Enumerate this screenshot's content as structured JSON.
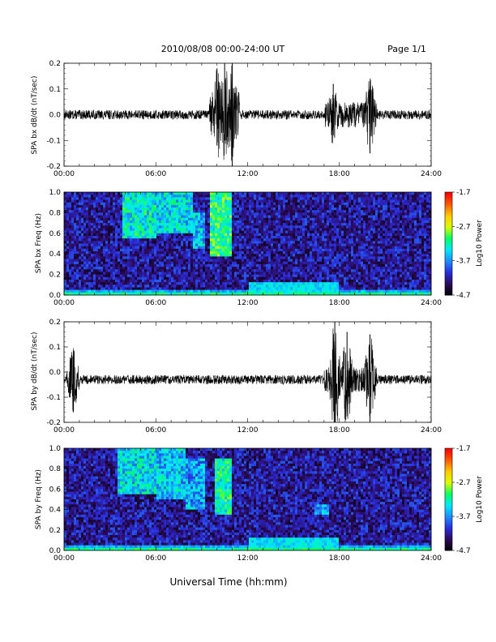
{
  "header": {
    "title": "2010/08/08  00:00-24:00 UT",
    "page": "Page 1/1"
  },
  "xlabel": "Universal Time (hh:mm)",
  "colors": {
    "axis": "#000000",
    "trace": "#000000",
    "colormap": [
      "#000000",
      "#2b0a55",
      "#2a2ad8",
      "#1e88ff",
      "#00e8ff",
      "#00ff66",
      "#d8ff00",
      "#ffcc00",
      "#ff5a00",
      "#ff0000"
    ]
  },
  "chart_data": [
    {
      "type": "line",
      "id": "bx",
      "ylabel": "SPA bx dB/dt (nT/sec)",
      "x_ticks": [
        "00:00",
        "06:00",
        "12:00",
        "18:00",
        "24:00"
      ],
      "xlim": [
        0,
        24
      ],
      "ylim": [
        -0.2,
        0.2
      ],
      "y_ticks": [
        "0.2",
        "0.1",
        "0.0",
        "-0.1",
        "-0.2"
      ],
      "baseline": 0.0,
      "events": [
        {
          "x": 10.0,
          "ymin": -0.12,
          "ymax": 0.18
        },
        {
          "x": 10.5,
          "ymin": -0.1,
          "ymax": 0.2
        },
        {
          "x": 11.0,
          "ymin": -0.2,
          "ymax": 0.2
        },
        {
          "x": 17.6,
          "ymin": -0.08,
          "ymax": 0.12
        },
        {
          "x": 20.0,
          "ymin": -0.15,
          "ymax": 0.11
        }
      ]
    },
    {
      "type": "heatmap",
      "id": "bx-spec",
      "ylabel": "SPA bx Freq (Hz)",
      "x_ticks": [
        "00:00",
        "06:00",
        "12:00",
        "18:00",
        "24:00"
      ],
      "xlim": [
        0,
        24
      ],
      "ylim": [
        0.0,
        1.0
      ],
      "y_ticks": [
        "1.0",
        "0.8",
        "0.6",
        "0.4",
        "0.2",
        "0.0"
      ],
      "colorbar": {
        "label": "Log10 Power",
        "ticks": [
          "-1.7",
          "-2.7",
          "-3.7",
          "-4.7"
        ],
        "range": [
          -4.7,
          -1.7
        ]
      },
      "features": [
        {
          "x_start": 3.8,
          "x_end": 6.0,
          "f_low": 0.55,
          "f_high": 1.0,
          "log_power": -2.9
        },
        {
          "x_start": 6.0,
          "x_end": 8.4,
          "f_low": 0.6,
          "f_high": 1.0,
          "log_power": -3.0
        },
        {
          "x_start": 8.4,
          "x_end": 9.2,
          "f_low": 0.45,
          "f_high": 0.8,
          "log_power": -3.1
        },
        {
          "x_start": 9.5,
          "x_end": 10.9,
          "f_low": 0.38,
          "f_high": 1.0,
          "log_power": -2.7
        }
      ]
    },
    {
      "type": "line",
      "id": "by",
      "ylabel": "SPA by dB/dt (nT/sec)",
      "x_ticks": [
        "00:00",
        "06:00",
        "12:00",
        "18:00",
        "24:00"
      ],
      "xlim": [
        0,
        24
      ],
      "ylim": [
        -0.2,
        0.2
      ],
      "y_ticks": [
        "0.2",
        "0.1",
        "0.0",
        "-0.1",
        "-0.2"
      ],
      "baseline": -0.03,
      "events": [
        {
          "x": 0.6,
          "ymin": -0.16,
          "ymax": 0.06
        },
        {
          "x": 17.7,
          "ymin": -0.2,
          "ymax": 0.2
        },
        {
          "x": 18.5,
          "ymin": -0.12,
          "ymax": 0.16
        },
        {
          "x": 20.0,
          "ymin": -0.2,
          "ymax": 0.15
        }
      ]
    },
    {
      "type": "heatmap",
      "id": "by-spec",
      "ylabel": "SPA by Freq (Hz)",
      "x_ticks": [
        "00:00",
        "06:00",
        "12:00",
        "18:00",
        "24:00"
      ],
      "xlim": [
        0,
        24
      ],
      "ylim": [
        0.0,
        1.0
      ],
      "y_ticks": [
        "1.0",
        "0.8",
        "0.6",
        "0.4",
        "0.2",
        "0.0"
      ],
      "colorbar": {
        "label": "Log10 Power",
        "ticks": [
          "-1.7",
          "-2.7",
          "-3.7",
          "-4.7"
        ],
        "range": [
          -4.7,
          -1.7
        ]
      },
      "features": [
        {
          "x_start": 3.5,
          "x_end": 6.0,
          "f_low": 0.55,
          "f_high": 1.0,
          "log_power": -3.0
        },
        {
          "x_start": 6.0,
          "x_end": 8.0,
          "f_low": 0.5,
          "f_high": 1.0,
          "log_power": -3.1
        },
        {
          "x_start": 8.0,
          "x_end": 9.2,
          "f_low": 0.4,
          "f_high": 0.9,
          "log_power": -3.2
        },
        {
          "x_start": 9.8,
          "x_end": 10.9,
          "f_low": 0.35,
          "f_high": 0.9,
          "log_power": -2.8
        },
        {
          "x_start": 16.3,
          "x_end": 17.3,
          "f_low": 0.35,
          "f_high": 0.45,
          "log_power": -3.2
        }
      ]
    }
  ]
}
